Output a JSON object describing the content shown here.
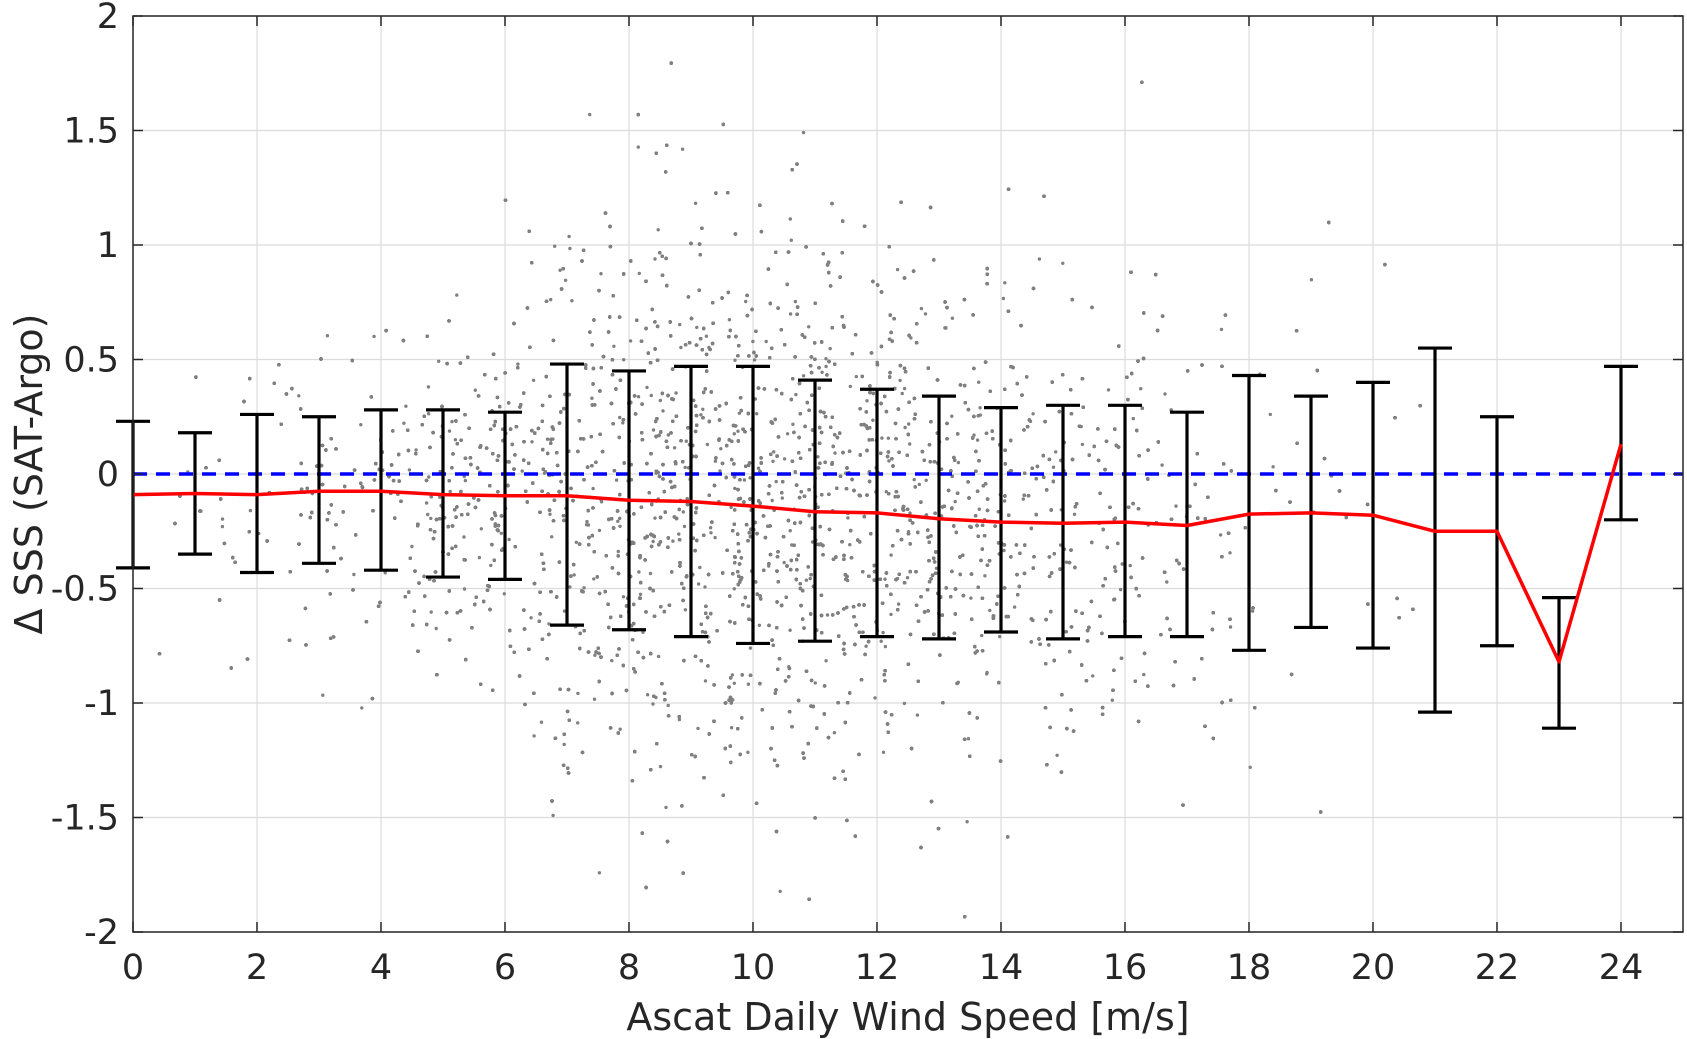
{
  "chart_data": {
    "type": "scatter",
    "xlabel": "Ascat Daily Wind Speed [m/s]",
    "ylabel": "Δ SSS (SAT-Argo)",
    "xlim": [
      0,
      25
    ],
    "ylim": [
      -2,
      2
    ],
    "xticks": [
      0,
      2,
      4,
      6,
      8,
      10,
      12,
      14,
      16,
      18,
      20,
      22,
      24
    ],
    "yticks": [
      -2,
      -1.5,
      -1,
      -0.5,
      0,
      0.5,
      1,
      1.5,
      2
    ],
    "xtick_labels": [
      "0",
      "2",
      "4",
      "6",
      "8",
      "10",
      "12",
      "14",
      "16",
      "18",
      "20",
      "22",
      "24"
    ],
    "ytick_labels": [
      "-2",
      "-1.5",
      "-1",
      "-0.5",
      "0",
      "0.5",
      "1",
      "1.5",
      "2"
    ],
    "grid": true,
    "reference_line": {
      "y": 0,
      "color": "#0000ff",
      "style": "dashed"
    },
    "scatter_style": {
      "color": "#808080"
    },
    "mean_line": {
      "color": "#ff0000",
      "x": [
        0,
        1,
        2,
        3,
        4,
        5,
        6,
        7,
        8,
        9,
        10,
        11,
        12,
        13,
        14,
        15,
        16,
        17,
        18,
        19,
        20,
        21,
        22,
        23,
        24
      ],
      "y": [
        -0.09,
        -0.085,
        -0.09,
        -0.075,
        -0.075,
        -0.09,
        -0.095,
        -0.095,
        -0.115,
        -0.12,
        -0.14,
        -0.165,
        -0.17,
        -0.195,
        -0.21,
        -0.215,
        -0.21,
        -0.225,
        -0.175,
        -0.17,
        -0.18,
        -0.25,
        -0.25,
        -0.82,
        0.13
      ]
    },
    "error_bars": {
      "color": "#000000",
      "x": [
        0,
        1,
        2,
        3,
        4,
        5,
        6,
        7,
        8,
        9,
        10,
        11,
        12,
        13,
        14,
        15,
        16,
        17,
        18,
        19,
        20,
        21,
        22,
        23,
        24
      ],
      "upper": [
        0.23,
        0.18,
        0.26,
        0.25,
        0.28,
        0.28,
        0.27,
        0.48,
        0.45,
        0.47,
        0.47,
        0.41,
        0.37,
        0.34,
        0.29,
        0.3,
        0.3,
        0.27,
        0.43,
        0.34,
        0.4,
        0.55,
        0.25,
        -0.54,
        0.47
      ],
      "lower": [
        -0.41,
        -0.35,
        -0.43,
        -0.39,
        -0.42,
        -0.45,
        -0.46,
        -0.66,
        -0.68,
        -0.71,
        -0.74,
        -0.73,
        -0.71,
        -0.72,
        -0.69,
        -0.72,
        -0.71,
        -0.71,
        -0.77,
        -0.67,
        -0.76,
        -1.04,
        -0.75,
        -1.11,
        -0.2
      ]
    },
    "scatter_envelope": {
      "x": [
        0,
        1,
        2,
        3,
        4,
        5,
        6,
        7,
        8,
        9,
        10,
        11,
        12,
        13,
        14,
        15,
        16,
        17,
        18,
        19,
        20,
        21,
        22,
        23,
        24
      ],
      "mean": [
        -0.09,
        -0.085,
        -0.09,
        -0.075,
        -0.075,
        -0.09,
        -0.095,
        -0.095,
        -0.115,
        -0.12,
        -0.14,
        -0.165,
        -0.17,
        -0.195,
        -0.21,
        -0.215,
        -0.21,
        -0.225,
        -0.175,
        -0.17,
        -0.18,
        -0.25,
        -0.25,
        -0.82,
        0.13
      ],
      "std": [
        0.32,
        0.27,
        0.34,
        0.32,
        0.35,
        0.36,
        0.36,
        0.57,
        0.57,
        0.59,
        0.6,
        0.57,
        0.54,
        0.53,
        0.49,
        0.51,
        0.5,
        0.49,
        0.6,
        0.51,
        0.58,
        0.8,
        0.5,
        0.29,
        0.34
      ],
      "relative_density": [
        0.02,
        0.05,
        0.12,
        0.2,
        0.3,
        0.42,
        0.55,
        0.7,
        0.85,
        0.95,
        1.0,
        0.95,
        0.85,
        0.72,
        0.58,
        0.45,
        0.32,
        0.2,
        0.1,
        0.05,
        0.025,
        0.012,
        0.006,
        0.003,
        0.003
      ]
    }
  }
}
